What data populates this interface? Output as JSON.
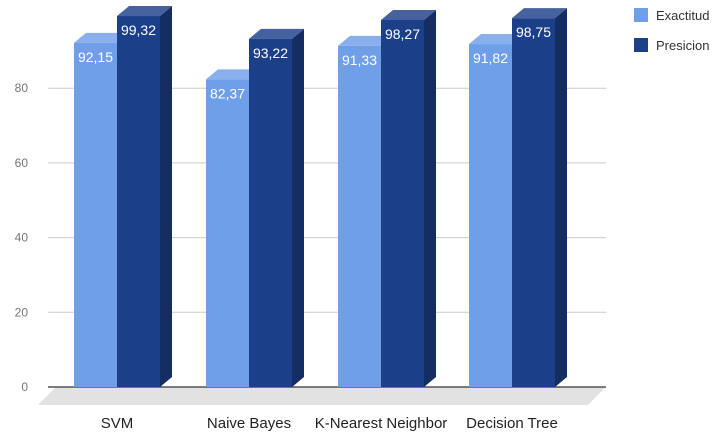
{
  "chart_data": {
    "type": "bar",
    "categories": [
      "SVM",
      "Naive Bayes",
      "K-Nearest Neighbor",
      "Decision Tree"
    ],
    "series": [
      {
        "name": "Exactitud",
        "values": [
          92.15,
          82.37,
          91.33,
          91.82
        ],
        "labels": [
          "92,15",
          "82,37",
          "91,33",
          "91,82"
        ],
        "color": "#6f9fe8"
      },
      {
        "name": "Presicion",
        "values": [
          99.32,
          93.22,
          98.27,
          98.75
        ],
        "labels": [
          "99,32",
          "93,22",
          "98,27",
          "98,75"
        ],
        "color": "#1c3f8a"
      }
    ],
    "yticks": [
      0,
      20,
      40,
      60,
      80
    ],
    "ylim": [
      0,
      100
    ],
    "grid": true,
    "legend_position": "top-right",
    "style": "3d-bars"
  }
}
